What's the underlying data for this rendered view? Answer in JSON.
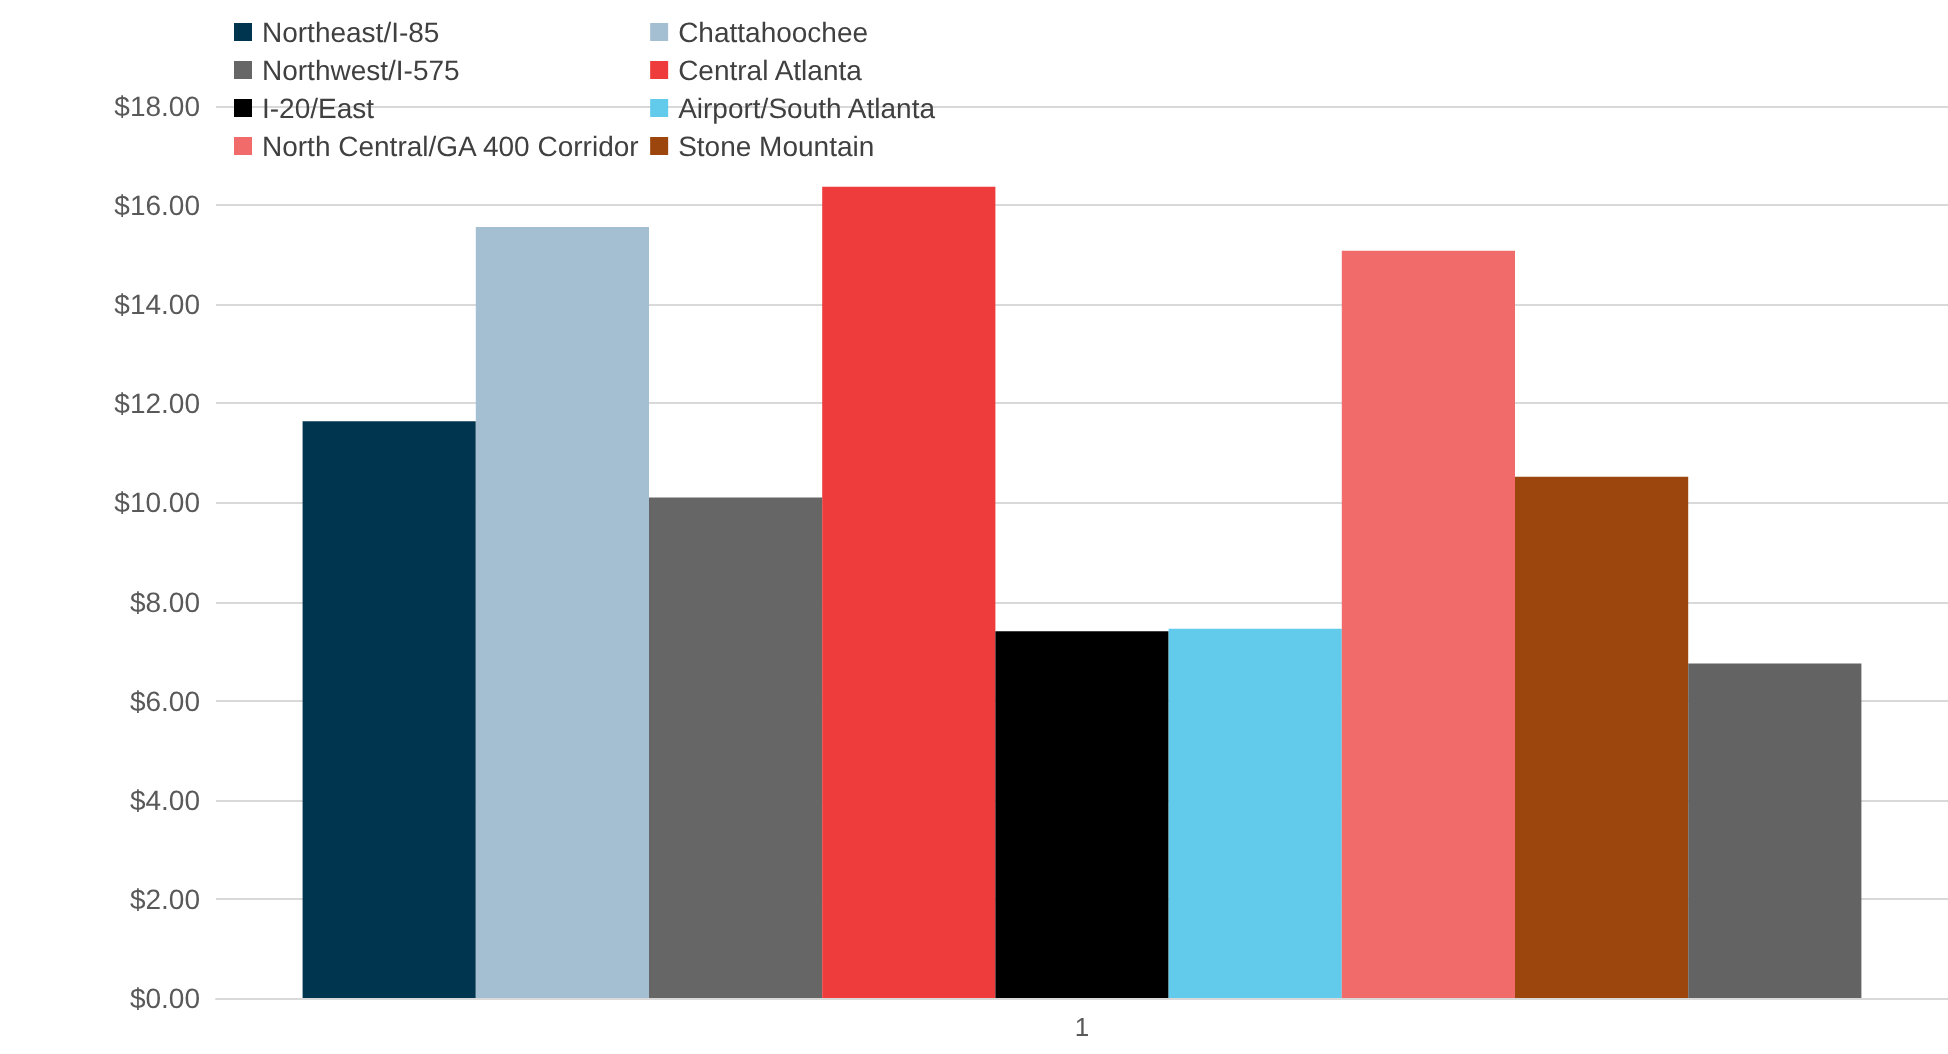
{
  "chart_data": {
    "type": "bar",
    "categories": [
      "1"
    ],
    "series": [
      {
        "name": "Northeast/I-85",
        "color": "#003550",
        "values": [
          11.64
        ]
      },
      {
        "name": "Chattahoochee",
        "color": "#a5bfd2",
        "values": [
          15.56
        ]
      },
      {
        "name": "Northwest/I-575",
        "color": "#666666",
        "values": [
          10.1
        ]
      },
      {
        "name": "Central Atlanta",
        "color": "#ee3b3b",
        "values": [
          16.37
        ]
      },
      {
        "name": "I-20/East",
        "color": "#000000",
        "values": [
          7.4
        ]
      },
      {
        "name": "Airport/South Atlanta",
        "color": "#62caeb",
        "values": [
          7.45
        ]
      },
      {
        "name": "North Central/GA 400 Corridor",
        "color": "#f26b6b",
        "values": [
          15.08
        ]
      },
      {
        "name": "Stone Mountain",
        "color": "#9c450d",
        "values": [
          10.52
        ]
      },
      {
        "color": "#636363",
        "values": [
          6.75
        ]
      }
    ],
    "ylim": [
      0,
      18
    ],
    "yticks": [
      {
        "value": 0,
        "label": "$0.00"
      },
      {
        "value": 2,
        "label": "$2.00"
      },
      {
        "value": 4,
        "label": "$4.00"
      },
      {
        "value": 6,
        "label": "$6.00"
      },
      {
        "value": 8,
        "label": "$8.00"
      },
      {
        "value": 10,
        "label": "$10.00"
      },
      {
        "value": 12,
        "label": "$12.00"
      },
      {
        "value": 14,
        "label": "$14.00"
      },
      {
        "value": 16,
        "label": "$16.00"
      },
      {
        "value": 18,
        "label": "$18.00"
      }
    ],
    "grid": "y",
    "legend": "top left"
  }
}
